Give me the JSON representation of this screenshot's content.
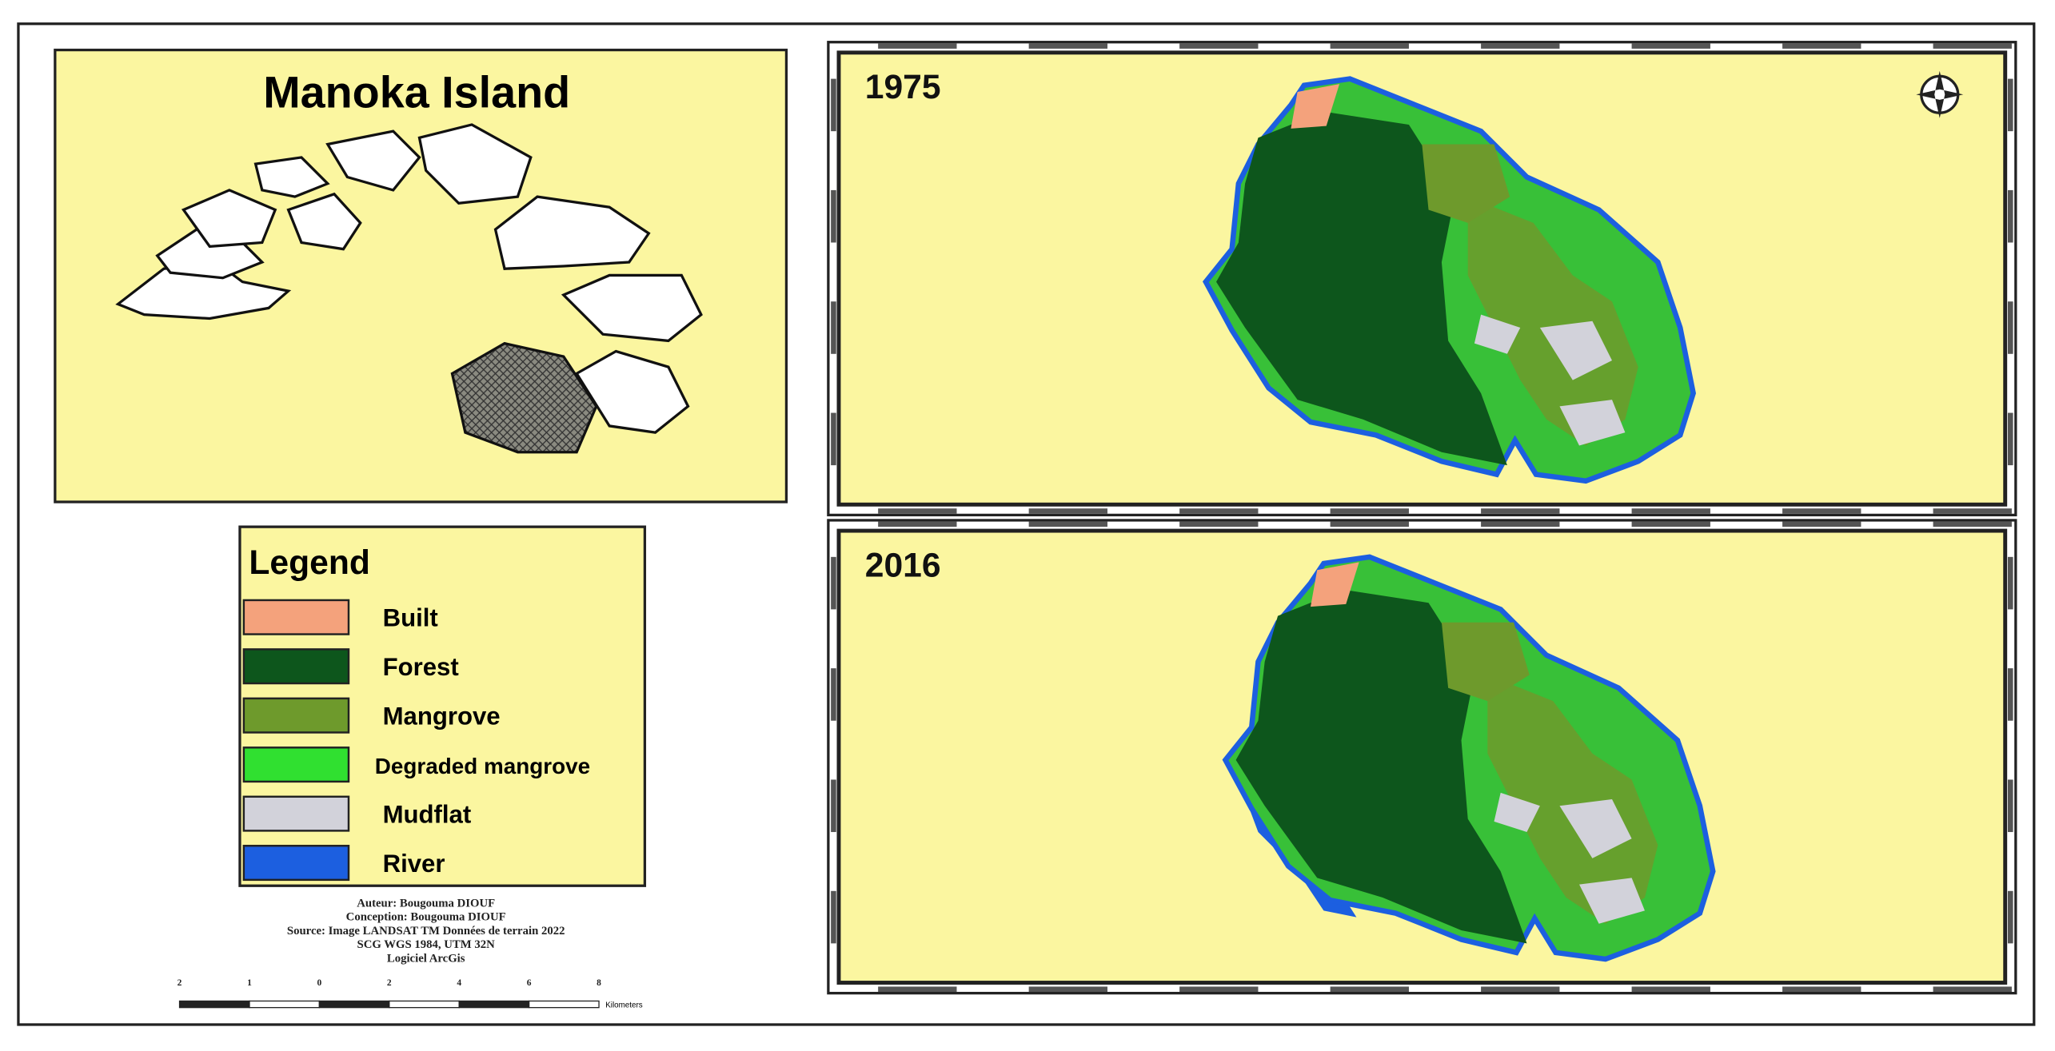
{
  "title": "Manoka Island",
  "maps": [
    {
      "year": "1975"
    },
    {
      "year": "2016"
    }
  ],
  "legend": {
    "title": "Legend",
    "items": [
      {
        "label": "Built",
        "color": "#f4a27c"
      },
      {
        "label": "Forest",
        "color": "#0d561c"
      },
      {
        "label": "Mangrove",
        "color": "#6e9a2c"
      },
      {
        "label": "Degraded mangrove",
        "color": "#30e030"
      },
      {
        "label": "Mudflat",
        "color": "#d2d2da"
      },
      {
        "label": "River",
        "color": "#1c5fe0"
      }
    ]
  },
  "credits": [
    "Auteur: Bougouma DIOUF",
    "Conception: Bougouma DIOUF",
    "Source: Image LANDSAT TM Données de terrain 2022",
    "SCG WGS 1984, UTM 32N",
    "Logiciel ArcGis"
  ],
  "scale_bar": {
    "labels": [
      "2",
      "1",
      "0",
      "2",
      "4",
      "6",
      "8"
    ],
    "unit": "Kilometers"
  }
}
